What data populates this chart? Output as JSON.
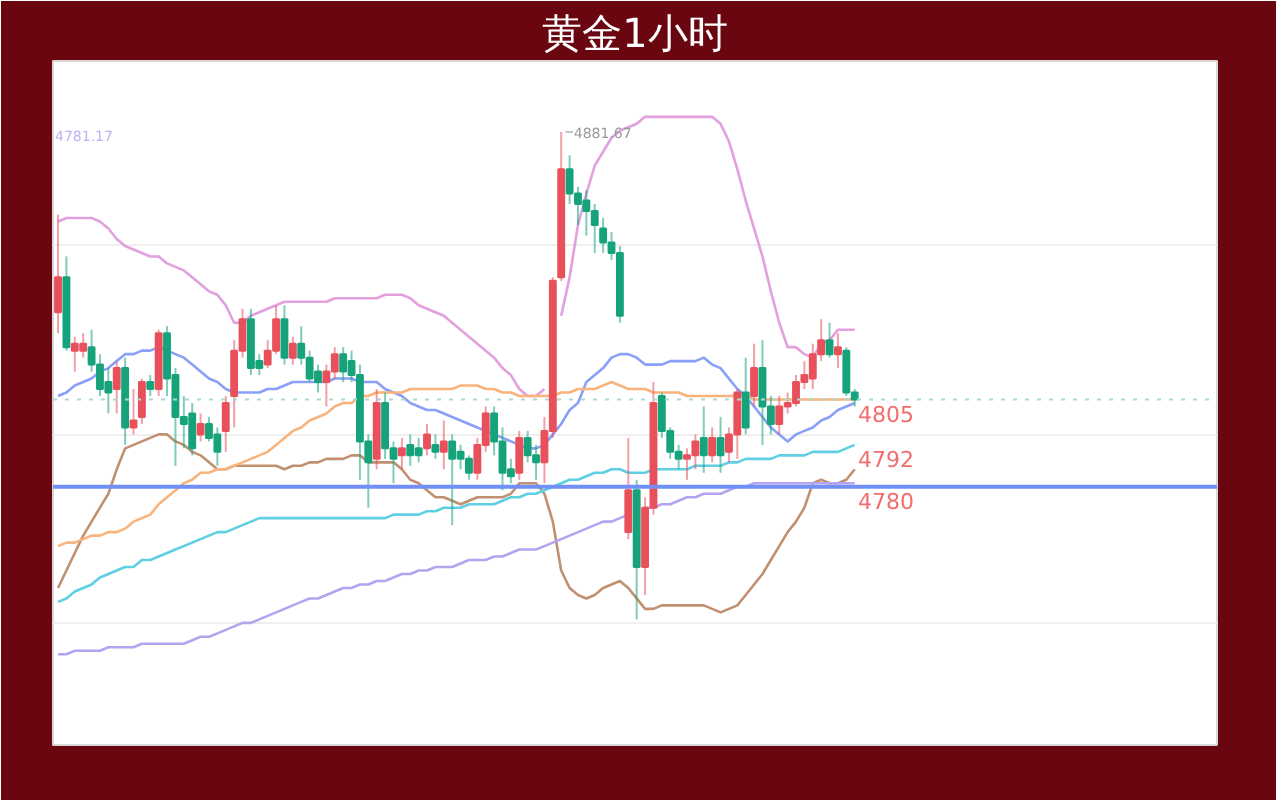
{
  "chart_data": {
    "type": "candlestick",
    "title": "黄金1小时",
    "categories": [
      null,
      null,
      null,
      null,
      null,
      null,
      null,
      null,
      null,
      null,
      null,
      null,
      null,
      null,
      null,
      null,
      null,
      null,
      null,
      null,
      null,
      null,
      null,
      null,
      null,
      null,
      null,
      null,
      null,
      null,
      null,
      null,
      null,
      null,
      null,
      null,
      null,
      null,
      null,
      null,
      null,
      null,
      null,
      null,
      null,
      null,
      null,
      null,
      null,
      null,
      null,
      null,
      null,
      null,
      null,
      null,
      null,
      null,
      null,
      null,
      null,
      null,
      null,
      null,
      null,
      null,
      null,
      null,
      null,
      null,
      null,
      null,
      null,
      null,
      null,
      null,
      null,
      null,
      null,
      null,
      null,
      null,
      null,
      null,
      null,
      null,
      null,
      null,
      null,
      null,
      null,
      null,
      null,
      null,
      null,
      null
    ],
    "ohlc": [
      [
        4830,
        4858,
        4824,
        4840
      ],
      [
        4840,
        4846,
        4819,
        4820
      ],
      [
        4819,
        4823,
        4813,
        4821
      ],
      [
        4819,
        4824,
        4817,
        4821
      ],
      [
        4820,
        4825,
        4813,
        4815
      ],
      [
        4815,
        4818,
        4806,
        4808
      ],
      [
        4810,
        4814,
        4801,
        4807
      ],
      [
        4808,
        4816,
        4801,
        4814
      ],
      [
        4814,
        4817,
        4792,
        4797
      ],
      [
        4797,
        4808,
        4795,
        4799
      ],
      [
        4800,
        4811,
        4798,
        4810
      ],
      [
        4810,
        4812,
        4806,
        4808
      ],
      [
        4808,
        4825,
        4806,
        4824
      ],
      [
        4824,
        4826,
        4806,
        4811
      ],
      [
        4812,
        4814,
        4786,
        4800
      ],
      [
        4800,
        4806,
        4791,
        4798
      ],
      [
        4801,
        4804,
        4789,
        4791
      ],
      [
        4795,
        4801,
        4793,
        4798
      ],
      [
        4798,
        4800,
        4793,
        4794
      ],
      [
        4795,
        4797,
        4786,
        4790
      ],
      [
        4796,
        4806,
        4790,
        4804
      ],
      [
        4806,
        4822,
        4797,
        4819
      ],
      [
        4819,
        4831,
        4817,
        4828
      ],
      [
        4828,
        4831,
        4812,
        4814
      ],
      [
        4816,
        4818,
        4812,
        4814
      ],
      [
        4815,
        4822,
        4814,
        4819
      ],
      [
        4819,
        4832,
        4818,
        4828
      ],
      [
        4828,
        4832,
        4815,
        4817
      ],
      [
        4817,
        4823,
        4815,
        4821
      ],
      [
        4821,
        4826,
        4815,
        4817
      ],
      [
        4817,
        4819,
        4810,
        4811
      ],
      [
        4813,
        4815,
        4807,
        4810
      ],
      [
        4810,
        4815,
        4803,
        4813
      ],
      [
        4813,
        4820,
        4811,
        4818
      ],
      [
        4818,
        4820,
        4810,
        4813
      ],
      [
        4816,
        4819,
        4810,
        4812
      ],
      [
        4812,
        4815,
        4782,
        4793
      ],
      [
        4793,
        4795,
        4774,
        4787
      ],
      [
        4788,
        4808,
        4785,
        4804
      ],
      [
        4804,
        4807,
        4788,
        4791
      ],
      [
        4791,
        4793,
        4781,
        4788
      ],
      [
        4789,
        4794,
        4785,
        4791
      ],
      [
        4792,
        4795,
        4786,
        4789
      ],
      [
        4791,
        4794,
        4787,
        4789
      ],
      [
        4791,
        4798,
        4789,
        4795
      ],
      [
        4792,
        4795,
        4788,
        4790
      ],
      [
        4790,
        4799,
        4785,
        4793
      ],
      [
        4793,
        4795,
        4769,
        4788
      ],
      [
        4790,
        4792,
        4785,
        4788
      ],
      [
        4788,
        4789,
        4782,
        4784
      ],
      [
        4784,
        4794,
        4782,
        4792
      ],
      [
        4792,
        4803,
        4790,
        4801
      ],
      [
        4801,
        4803,
        4789,
        4793
      ],
      [
        4793,
        4797,
        4779,
        4784
      ],
      [
        4785,
        4788,
        4781,
        4783
      ],
      [
        4784,
        4796,
        4782,
        4794
      ],
      [
        4794,
        4796,
        4787,
        4789
      ],
      [
        4789,
        4792,
        4782,
        4787
      ],
      [
        4787,
        4800,
        4781,
        4796
      ],
      [
        4796,
        4840,
        4794,
        4839
      ],
      [
        4840,
        4881.67,
        4839,
        4871
      ],
      [
        4871,
        4875,
        4861,
        4864
      ],
      [
        4864,
        4866,
        4855,
        4861
      ],
      [
        4862,
        4865,
        4852,
        4859
      ],
      [
        4859,
        4861,
        4847,
        4855
      ],
      [
        4854,
        4857,
        4847,
        4850
      ],
      [
        4850,
        4853,
        4845,
        4847
      ],
      [
        4847,
        4849,
        4827,
        4829
      ],
      [
        4767,
        4794,
        4765,
        4779
      ],
      [
        4779,
        4782,
        4742,
        4757
      ],
      [
        4757,
        4777,
        4749,
        4774
      ],
      [
        4774,
        4810,
        4772,
        4804
      ],
      [
        4806,
        4807,
        4794,
        4796
      ],
      [
        4796,
        4797,
        4788,
        4790
      ],
      [
        4790,
        4792,
        4785,
        4788
      ],
      [
        4788,
        4791,
        4782,
        4789
      ],
      [
        4789,
        4795,
        4785,
        4793
      ],
      [
        4794,
        4803,
        4784,
        4789
      ],
      [
        4789,
        4797,
        4787,
        4794
      ],
      [
        4794,
        4800,
        4784,
        4789
      ],
      [
        4790,
        4797,
        4787,
        4795
      ],
      [
        4795,
        4808,
        4788,
        4807
      ],
      [
        4807,
        4817,
        4795,
        4797
      ],
      [
        4806,
        4821,
        4803,
        4814
      ],
      [
        4814,
        4822,
        4792,
        4803
      ],
      [
        4803,
        4806,
        4795,
        4798
      ],
      [
        4798,
        4806,
        4795,
        4803
      ],
      [
        4803,
        4807,
        4801,
        4804
      ],
      [
        4804,
        4812,
        4803,
        4810
      ],
      [
        4810,
        4816,
        4808,
        4812
      ],
      [
        4811,
        4821,
        4808,
        4818
      ],
      [
        4818,
        4828,
        4816,
        4822
      ],
      [
        4822,
        4827,
        4817,
        4818
      ],
      [
        4818,
        4824,
        4814,
        4820
      ],
      [
        4819,
        4820,
        4806,
        4807
      ],
      [
        4807,
        4808,
        4803,
        4805
      ]
    ],
    "colors": [
      "#e8505b",
      "#16a37b",
      "#e8505b",
      "#e8505b",
      "#16a37b",
      "#16a37b",
      "#16a37b",
      "#e8505b",
      "#16a37b",
      "#e8505b",
      "#e8505b",
      "#16a37b",
      "#e8505b",
      "#16a37b",
      "#16a37b",
      "#16a37b",
      "#16a37b",
      "#e8505b",
      "#16a37b",
      "#16a37b",
      "#e8505b",
      "#e8505b",
      "#e8505b",
      "#16a37b",
      "#16a37b",
      "#e8505b",
      "#e8505b",
      "#16a37b",
      "#e8505b",
      "#16a37b",
      "#16a37b",
      "#16a37b",
      "#e8505b",
      "#e8505b",
      "#16a37b",
      "#16a37b",
      "#16a37b",
      "#16a37b",
      "#e8505b",
      "#16a37b",
      "#16a37b",
      "#e8505b",
      "#16a37b",
      "#16a37b",
      "#e8505b",
      "#16a37b",
      "#e8505b",
      "#16a37b",
      "#16a37b",
      "#16a37b",
      "#e8505b",
      "#e8505b",
      "#16a37b",
      "#16a37b",
      "#16a37b",
      "#e8505b",
      "#16a37b",
      "#16a37b",
      "#e8505b",
      "#e8505b",
      "#e8505b",
      "#16a37b",
      "#16a37b",
      "#16a37b",
      "#16a37b",
      "#16a37b",
      "#16a37b",
      "#16a37b",
      "#e8505b",
      "#16a37b",
      "#e8505b",
      "#e8505b",
      "#16a37b",
      "#16a37b",
      "#16a37b",
      "#e8505b",
      "#e8505b",
      "#16a37b",
      "#e8505b",
      "#16a37b",
      "#e8505b",
      "#e8505b",
      "#16a37b",
      "#e8505b",
      "#16a37b",
      "#16a37b",
      "#e8505b",
      "#e8505b",
      "#e8505b",
      "#e8505b",
      "#e8505b",
      "#e8505b",
      "#16a37b",
      "#e8505b",
      "#16a37b",
      "#16a37b"
    ],
    "series": [
      {
        "type": "line",
        "color": "#e3a0de",
        "values": [
          4856,
          4857,
          4857,
          4857,
          4857,
          4856,
          4854,
          4851,
          4849,
          4848,
          4847,
          4846,
          4846,
          4844,
          4843,
          4842,
          4840,
          4838,
          4836,
          4835,
          4832,
          4827,
          4827,
          4829,
          4830,
          4831,
          4832,
          4833,
          4833,
          4833,
          4833,
          4833,
          4833,
          4834,
          4834,
          4834,
          4834,
          4834,
          4834,
          4835,
          4835,
          4835,
          4834,
          4832,
          4831,
          4830,
          4829,
          4827,
          4825,
          4823,
          4821,
          4819,
          4817,
          4814,
          4812,
          4808,
          4806,
          4806,
          4808,
          null,
          4829,
          4840,
          4855,
          4864,
          4872,
          4876,
          4880,
          4882,
          4883,
          4884,
          4886,
          4886,
          4886,
          4886,
          4886,
          4886,
          4886,
          4886,
          4886,
          4884,
          4879,
          4871,
          4862,
          4854,
          4846,
          4836,
          4827,
          4820,
          4820,
          4818,
          4817,
          4821,
          4822,
          4825,
          4825,
          4825
        ]
      },
      {
        "type": "line",
        "color": "#8aa0f8",
        "values": [
          4806,
          4807,
          4809,
          4810,
          4811,
          4813,
          4814,
          4816,
          4818,
          4818,
          4819,
          4819,
          4820,
          4819,
          4818,
          4817,
          4815,
          4813,
          4811,
          4810,
          4808,
          4807,
          4807,
          4807,
          4807,
          4808,
          4808,
          4809,
          4810,
          4810,
          4810,
          4810,
          4810,
          4811,
          4811,
          4811,
          4810,
          4810,
          4810,
          4808,
          4807,
          4806,
          4804,
          4803,
          4802,
          4802,
          4801,
          4800,
          4799,
          4798,
          4797,
          4796,
          4795,
          4794,
          4793,
          4792,
          4791,
          4791,
          4792,
          4795,
          4798,
          4802,
          4804,
          4810,
          4812,
          4814,
          4817,
          4818,
          4818,
          4817,
          4815,
          4815,
          4815,
          4816,
          4816,
          4816,
          4816,
          4817,
          4815,
          4814,
          4811,
          4808,
          4806,
          4803,
          4800,
          4797,
          4795,
          4793,
          4795,
          4796,
          4797,
          4799,
          4800,
          4802,
          4803,
          4804
        ]
      },
      {
        "type": "line",
        "color": "#c09070",
        "values": [
          4751,
          4756,
          4761,
          4766,
          4770,
          4774,
          4778,
          4785,
          4791,
          4792,
          4793,
          4794,
          4795,
          4795,
          4793,
          4792,
          4790,
          4789,
          4787,
          4785,
          4785,
          4786,
          4786,
          4786,
          4786,
          4786,
          4786,
          4785,
          4786,
          4786,
          4787,
          4787,
          4788,
          4788,
          4788,
          4789,
          4789,
          4787,
          4787,
          4787,
          4787,
          4785,
          4782,
          4781,
          4779,
          4777,
          4777,
          4776,
          4775,
          4776,
          4777,
          4777,
          4777,
          4777,
          4778,
          4781,
          4781,
          4781,
          4778,
          4770,
          4756,
          4751,
          4749,
          4748,
          4749,
          4751,
          4752,
          4753,
          4751,
          4748,
          4745,
          4745,
          4746,
          4746,
          4746,
          4746,
          4746,
          4746,
          4745,
          4744,
          4745,
          4746,
          4749,
          4752,
          4755,
          4759,
          4763,
          4767,
          4770,
          4774,
          4781,
          4782,
          4781,
          4781,
          4782,
          4785
        ]
      },
      {
        "type": "line",
        "color": "#f8b47c",
        "values": [
          4763,
          4764,
          4764,
          4765,
          4766,
          4766,
          4767,
          4767,
          4768,
          4770,
          4771,
          4772,
          4775,
          4777,
          4779,
          4781,
          4782,
          4784,
          4784,
          4785,
          4785,
          4786,
          4787,
          4788,
          4789,
          4790,
          4792,
          4794,
          4796,
          4797,
          4799,
          4800,
          4801,
          4803,
          4804,
          4804,
          4806,
          4806,
          4807,
          4807,
          4807,
          4807,
          4808,
          4808,
          4808,
          4808,
          4808,
          4808,
          4809,
          4809,
          4809,
          4808,
          4808,
          4807,
          4807,
          4806,
          4806,
          4806,
          4806,
          4806,
          4807,
          4807,
          4808,
          4808,
          4808,
          4809,
          4810,
          4809,
          4808,
          4808,
          4808,
          4807,
          4807,
          4807,
          4807,
          4806,
          4806,
          4806,
          4806,
          4806,
          4806,
          4806,
          4806,
          4805,
          4805,
          4805,
          4805,
          4805,
          4805,
          4805,
          4805,
          4805,
          4805,
          4805,
          4805,
          4805
        ]
      },
      {
        "type": "line",
        "color": "#5fd0e4",
        "values": [
          4747,
          4748,
          4750,
          4751,
          4752,
          4754,
          4755,
          4756,
          4757,
          4757,
          4759,
          4759,
          4760,
          4761,
          4762,
          4763,
          4764,
          4765,
          4766,
          4767,
          4767,
          4768,
          4769,
          4770,
          4771,
          4771,
          4771,
          4771,
          4771,
          4771,
          4771,
          4771,
          4771,
          4771,
          4771,
          4771,
          4771,
          4771,
          4771,
          4771,
          4772,
          4772,
          4772,
          4772,
          4773,
          4773,
          4774,
          4774,
          4774,
          4775,
          4775,
          4775,
          4775,
          4776,
          4777,
          4777,
          4778,
          4778,
          4779,
          4780,
          4781,
          4782,
          4782,
          4783,
          4784,
          4784,
          4785,
          4785,
          4784,
          4784,
          4784,
          4785,
          4785,
          4785,
          4785,
          4785,
          4786,
          4786,
          4786,
          4786,
          4787,
          4787,
          4788,
          4788,
          4788,
          4788,
          4789,
          4789,
          4789,
          4789,
          4790,
          4790,
          4790,
          4790,
          4791,
          4792
        ],
        "value_labels": [
          null,
          null,
          null,
          null,
          null,
          null,
          null,
          null,
          null,
          null,
          null,
          null,
          null,
          null,
          null,
          null,
          null,
          null,
          null,
          null,
          null,
          null,
          null,
          null,
          null,
          null,
          null,
          null,
          null,
          null,
          null,
          null,
          null,
          null,
          null,
          null,
          null,
          null,
          null,
          null,
          null,
          null,
          null,
          null,
          null,
          null,
          null,
          null,
          null,
          null,
          null,
          null,
          null,
          null,
          null,
          null,
          null,
          null,
          null,
          null,
          null,
          null,
          null,
          null,
          null,
          null,
          null,
          null,
          null,
          null,
          null,
          null,
          null,
          null,
          null,
          null,
          null,
          null,
          null,
          null,
          null,
          null,
          null,
          null,
          null,
          null,
          null,
          null,
          null,
          null,
          null,
          null,
          null,
          null,
          null,
          "4792"
        ]
      },
      {
        "type": "line",
        "color": "#b5a3f0",
        "values": [
          4732,
          4732,
          4733,
          4733,
          4733,
          4733,
          4734,
          4734,
          4734,
          4734,
          4735,
          4735,
          4735,
          4735,
          4735,
          4735,
          4736,
          4737,
          4737,
          4738,
          4739,
          4740,
          4741,
          4741,
          4742,
          4743,
          4744,
          4745,
          4746,
          4747,
          4748,
          4748,
          4749,
          4750,
          4751,
          4751,
          4752,
          4752,
          4753,
          4753,
          4754,
          4755,
          4755,
          4756,
          4756,
          4757,
          4757,
          4757,
          4758,
          4759,
          4759,
          4759,
          4760,
          4760,
          4761,
          4762,
          4762,
          4762,
          4763,
          4764,
          4765,
          4766,
          4767,
          4768,
          4769,
          4770,
          4770,
          4771,
          4772,
          null,
          4774,
          4774,
          4775,
          4775,
          4776,
          4777,
          4777,
          4778,
          4778,
          4778,
          4779,
          4780,
          4780,
          4781,
          4781,
          4781,
          4781,
          4781,
          4781,
          4781,
          4781,
          4781,
          4781,
          4781,
          4781,
          4781
        ]
      }
    ],
    "ylim": [
      4706,
      4902
    ],
    "yticks": [
      {
        "value": 4741,
        "label": null
      },
      {
        "value": 4795,
        "label": null
      },
      {
        "value": 4849,
        "label": null
      }
    ],
    "grid": "y",
    "tick_labels": false,
    "ref_lines": [
      {
        "axis": "y",
        "value": 4805,
        "label": "4805",
        "color": "#a9d9d2",
        "line_style": "dotted"
      },
      {
        "axis": "y",
        "value": 4780,
        "label": "4780",
        "color": "#7090f8"
      }
    ],
    "annotations": [
      "4781.17",
      {
        "text": "4881.67",
        "y": 4881.67
      }
    ]
  }
}
